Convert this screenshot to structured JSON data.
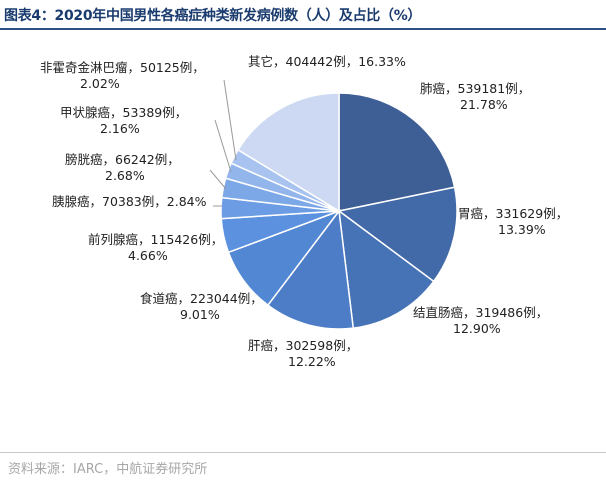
{
  "title": "图表4：2020年中国男性各癌症种类新发病例数（人）及占比（%）",
  "source": "资料来源：IARC，中航证券研究所",
  "chart_data": {
    "type": "pie",
    "title": "图表4：2020年中国男性各癌症种类新发病例数（人）及占比（%）",
    "start": "12 o'clock",
    "direction": "clockwise",
    "slices": [
      {
        "name": "肺癌",
        "value": 539181,
        "percent": "21.78%",
        "label": [
          "肺癌，539181例，",
          "21.78%"
        ],
        "color": "#3e5f96"
      },
      {
        "name": "胃癌",
        "value": 331629,
        "percent": "13.39%",
        "label": [
          "胃癌，331629例，",
          "13.39%"
        ],
        "color": "#4269a8"
      },
      {
        "name": "结直肠癌",
        "value": 319486,
        "percent": "12.90%",
        "label": [
          "结直肠癌，319486例，",
          "12.90%"
        ],
        "color": "#4672b6"
      },
      {
        "name": "肝癌",
        "value": 302598,
        "percent": "12.22%",
        "label": [
          "肝癌，302598例，",
          "12.22%"
        ],
        "color": "#4c7dc6"
      },
      {
        "name": "食道癌",
        "value": 223044,
        "percent": "9.01%",
        "label": [
          "食道癌，223044例，",
          "9.01%"
        ],
        "color": "#5287d3"
      },
      {
        "name": "前列腺癌",
        "value": 115426,
        "percent": "4.66%",
        "label": [
          "前列腺癌，115426例，",
          "4.66%"
        ],
        "color": "#5b91df"
      },
      {
        "name": "胰腺癌",
        "value": 70383,
        "percent": "2.84%",
        "label": [
          "胰腺癌，70383例，2.84%"
        ],
        "color": "#6b9ce4"
      },
      {
        "name": "膀胱癌",
        "value": 66242,
        "percent": "2.68%",
        "label": [
          "膀胱癌，66242例，",
          "2.68%"
        ],
        "color": "#7da8e8"
      },
      {
        "name": "甲状腺癌",
        "value": 53389,
        "percent": "2.16%",
        "label": [
          "甲状腺癌，53389例，",
          "2.16%"
        ],
        "color": "#92b5ec"
      },
      {
        "name": "非霍奇金淋巴瘤",
        "value": 50125,
        "percent": "2.02%",
        "label": [
          "非霍奇金淋巴瘤，50125例，",
          "2.02%"
        ],
        "color": "#a8c3ef"
      },
      {
        "name": "其它",
        "value": 404442,
        "percent": "16.33%",
        "label": [
          "其它，404442例，16.33%"
        ],
        "color": "#cdd9f2"
      }
    ]
  }
}
